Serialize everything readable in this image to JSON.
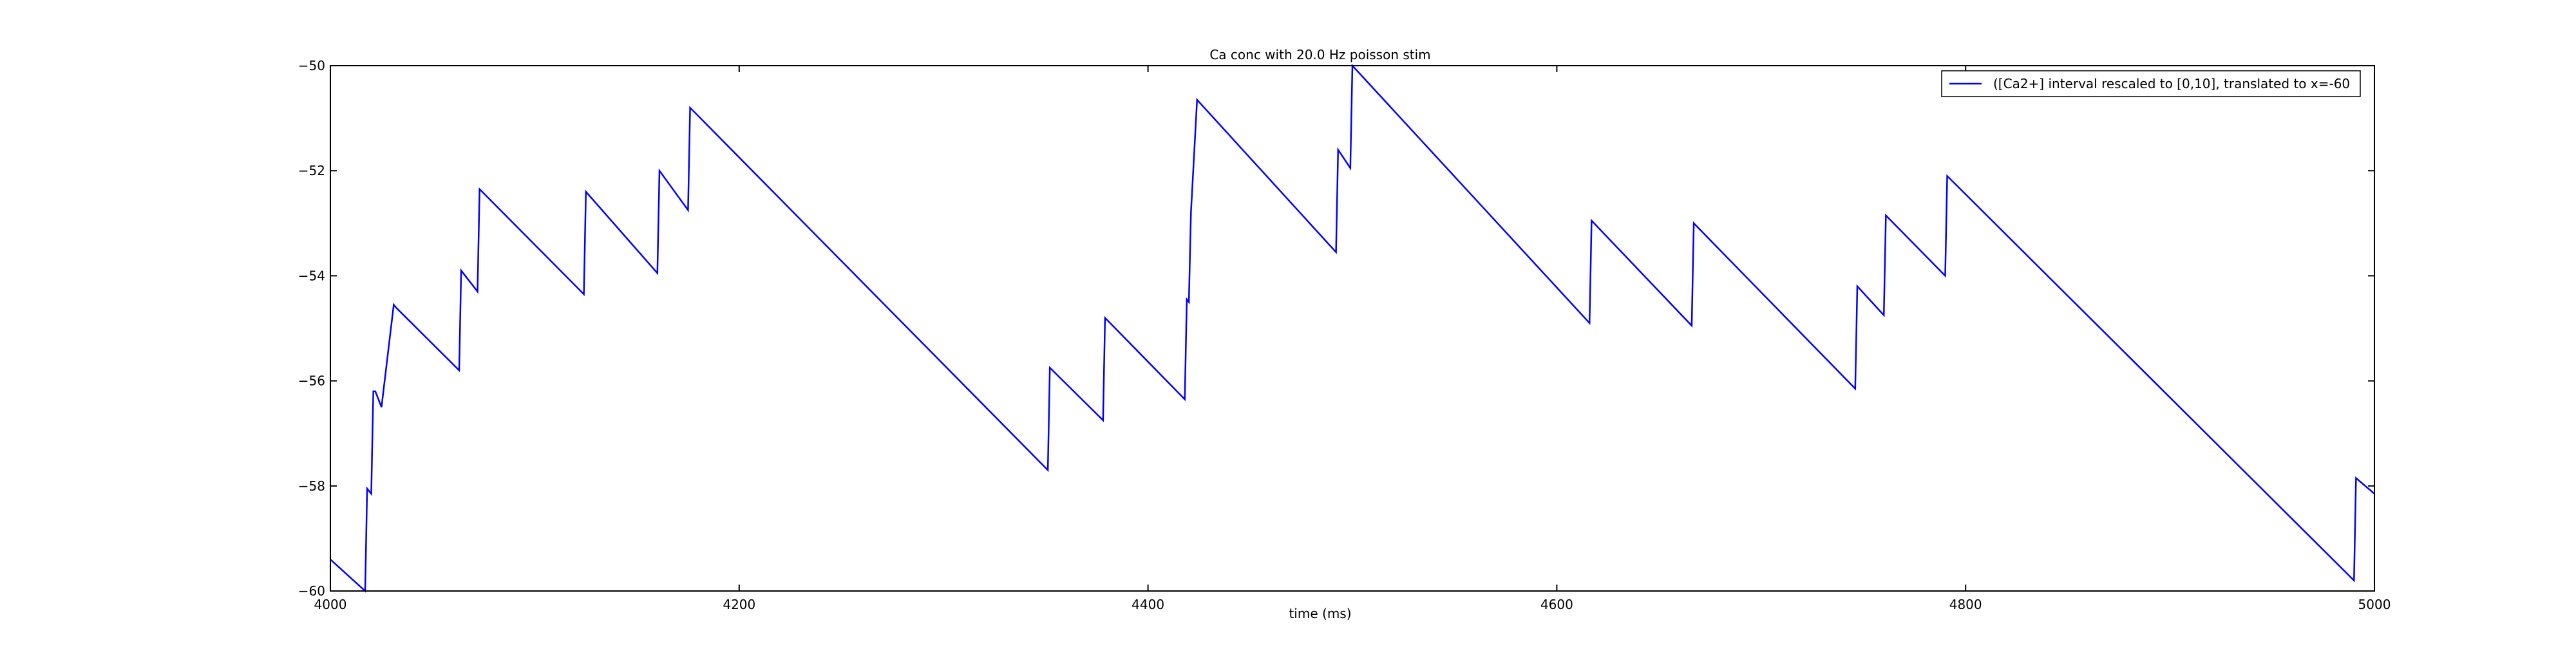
{
  "chart_data": {
    "type": "line",
    "title": "Ca conc with 20.0 Hz poisson stim",
    "xlabel": "time (ms)",
    "ylabel": "",
    "xlim": [
      4000,
      5000
    ],
    "ylim": [
      -60,
      -50
    ],
    "xticks": [
      4000,
      4200,
      4400,
      4600,
      4800,
      5000
    ],
    "yticks": [
      -60,
      -58,
      -56,
      -54,
      -52,
      -50
    ],
    "grid": false,
    "legend_position": "top-right",
    "series": [
      {
        "name": "([Ca2+] interval rescaled to [0,10], translated to x=-60",
        "color": "#0000ff",
        "x": [
          4000,
          4017,
          4018,
          4020,
          4021,
          4022,
          4025,
          4031,
          4032,
          4063,
          4064,
          4072,
          4073,
          4124,
          4125,
          4160,
          4161,
          4175,
          4176,
          4351,
          4352,
          4378,
          4379,
          4418,
          4419,
          4420,
          4421,
          4424,
          4492,
          4493,
          4499,
          4500,
          4616,
          4617,
          4666,
          4667,
          4746,
          4747,
          4760,
          4761,
          4790,
          4791,
          4990,
          4991,
          5000
        ],
        "y": [
          -59.4,
          -60.0,
          -58.05,
          -58.15,
          -56.2,
          -56.2,
          -56.5,
          -54.55,
          -54.6,
          -55.8,
          -53.9,
          -54.3,
          -52.35,
          -54.35,
          -52.4,
          -53.95,
          -52.0,
          -52.75,
          -50.8,
          -57.7,
          -55.75,
          -56.75,
          -54.8,
          -56.35,
          -54.45,
          -54.5,
          -52.8,
          -50.65,
          -53.55,
          -51.6,
          -51.95,
          -50.0,
          -54.9,
          -52.95,
          -54.95,
          -53.0,
          -56.15,
          -54.2,
          -54.75,
          -52.85,
          -54.0,
          -52.1,
          -59.8,
          -57.85,
          -58.15
        ]
      }
    ]
  }
}
